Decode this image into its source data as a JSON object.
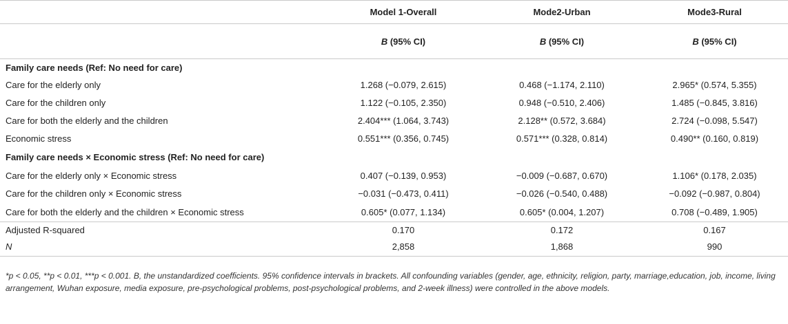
{
  "header": {
    "col1": "Model 1-Overall",
    "col2": "Mode2-Urban",
    "col3": "Mode3-Rural",
    "sub_b": "B",
    "sub_ci": " (95% CI)"
  },
  "sections": {
    "family_care_needs": "Family care needs (Ref: No need for care)",
    "interaction": "Family care needs × Economic stress (Ref: No need for care)"
  },
  "rows_main": [
    {
      "label": "Care for the elderly only",
      "m1": "1.268 (−0.079, 2.615)",
      "m2": "0.468 (−1.174, 2.110)",
      "m3": "2.965* (0.574, 5.355)"
    },
    {
      "label": "Care for the children only",
      "m1": "1.122 (−0.105, 2.350)",
      "m2": "0.948 (−0.510, 2.406)",
      "m3": "1.485 (−0.845, 3.816)"
    },
    {
      "label": "Care for both the elderly and the children",
      "m1": "2.404*** (1.064, 3.743)",
      "m2": "2.128** (0.572, 3.684)",
      "m3": "2.724 (−0.098, 5.547)"
    },
    {
      "label": "Economic stress",
      "m1": "0.551*** (0.356, 0.745)",
      "m2": "0.571*** (0.328, 0.814)",
      "m3": "0.490** (0.160, 0.819)"
    }
  ],
  "rows_interaction": [
    {
      "label": "Care for the elderly only × Economic stress",
      "m1": "0.407 (−0.139, 0.953)",
      "m2": "−0.009 (−0.687, 0.670)",
      "m3": "1.106* (0.178, 2.035)"
    },
    {
      "label": "Care for the children only × Economic stress",
      "m1": "−0.031 (−0.473, 0.411)",
      "m2": "−0.026 (−0.540, 0.488)",
      "m3": "−0.092 (−0.987, 0.804)"
    },
    {
      "label": "Care for both the elderly and the children × Economic stress",
      "m1": "0.605* (0.077, 1.134)",
      "m2": "0.605* (0.004, 1.207)",
      "m3": "0.708 (−0.489, 1.905)"
    }
  ],
  "stats": [
    {
      "label": "Adjusted R-squared",
      "m1": "0.170",
      "m2": "0.172",
      "m3": "0.167"
    },
    {
      "label": "N",
      "m1": "2,858",
      "m2": "1,868",
      "m3": "990"
    }
  ],
  "footnote": "*p < 0.05, **p < 0.01, ***p < 0.001. B, the unstandardized coefficients. 95% confidence intervals in brackets. All confounding variables (gender, age, ethnicity, religion, party, marriage,education, job, income, living arrangement, Wuhan exposure, media exposure, pre-psychological problems, post-psychological problems, and 2-week illness) were controlled in the above models."
}
